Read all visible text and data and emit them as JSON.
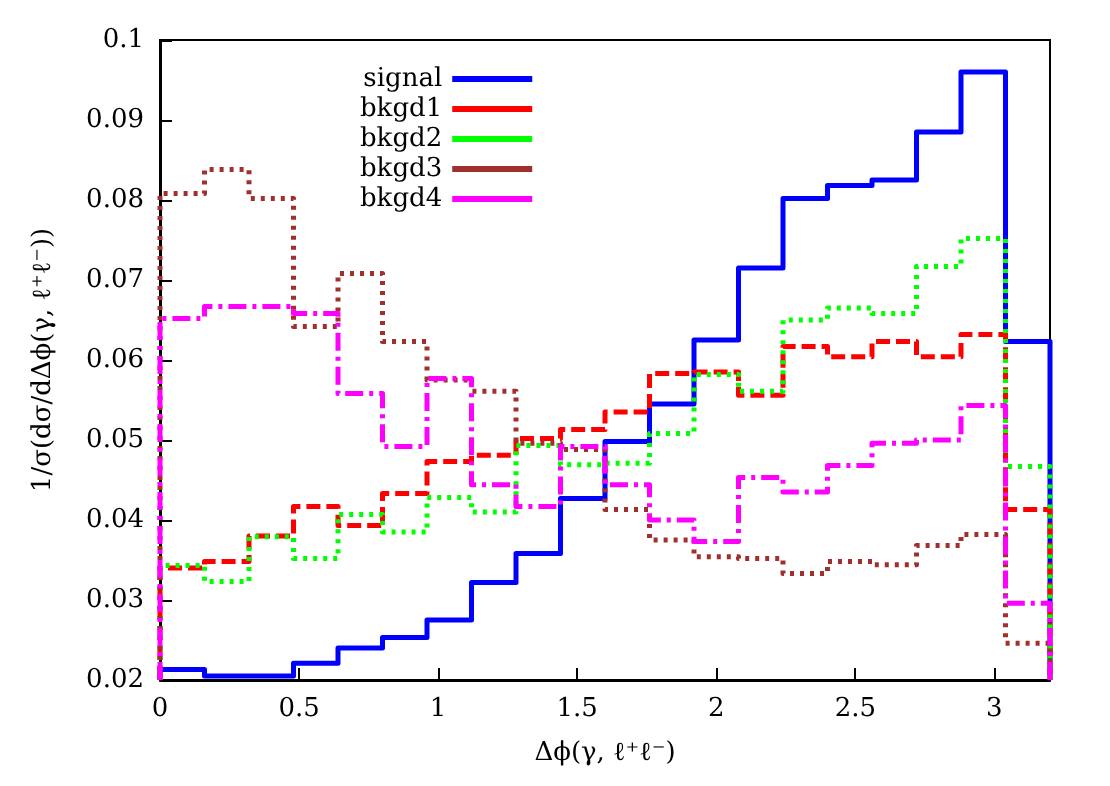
{
  "chart_data": {
    "type": "histogram",
    "xlabel": "Δϕ(γ, ℓ⁺ℓ⁻)",
    "ylabel": "1/σ(dσ/dΔϕ(γ, ℓ⁺ℓ⁻))",
    "bins": [
      0,
      0.16,
      0.32,
      0.48,
      0.64,
      0.8,
      0.96,
      1.12,
      1.28,
      1.44,
      1.6,
      1.76,
      1.92,
      2.08,
      2.24,
      2.4,
      2.56,
      2.72,
      2.88,
      3.04,
      3.2
    ],
    "series": [
      {
        "name": "signal",
        "color": "#0000ff",
        "line_style": "solid",
        "values": [
          0.0213,
          0.0205,
          0.0205,
          0.0221,
          0.024,
          0.0253,
          0.0275,
          0.0322,
          0.0358,
          0.0427,
          0.0498,
          0.0545,
          0.0625,
          0.0715,
          0.0802,
          0.0818,
          0.0825,
          0.0885,
          0.096,
          0.0623
        ]
      },
      {
        "name": "bkgd1",
        "color": "#ff0000",
        "line_style": "dashed",
        "values": [
          0.034,
          0.0348,
          0.038,
          0.0417,
          0.0393,
          0.0433,
          0.0473,
          0.0481,
          0.0502,
          0.0513,
          0.0535,
          0.0583,
          0.0585,
          0.0556,
          0.0617,
          0.0604,
          0.0623,
          0.0604,
          0.0632,
          0.0413
        ]
      },
      {
        "name": "bkgd2",
        "color": "#00ff00",
        "line_style": "dotted",
        "values": [
          0.0343,
          0.0323,
          0.0379,
          0.0352,
          0.0407,
          0.0385,
          0.0428,
          0.041,
          0.0493,
          0.0469,
          0.0471,
          0.0508,
          0.0582,
          0.0561,
          0.065,
          0.0665,
          0.0658,
          0.0717,
          0.0752,
          0.0467
        ]
      },
      {
        "name": "bkgd3",
        "color": "#a0302e",
        "line_style": "dotted",
        "values": [
          0.0808,
          0.0838,
          0.0802,
          0.0642,
          0.0708,
          0.0623,
          0.0575,
          0.0561,
          0.0496,
          0.0488,
          0.0413,
          0.0375,
          0.0354,
          0.0352,
          0.0333,
          0.0348,
          0.0344,
          0.0368,
          0.0382,
          0.0246
        ]
      },
      {
        "name": "bkgd4",
        "color": "#ff00ff",
        "line_style": "dashdot",
        "values": [
          0.0652,
          0.0667,
          0.0667,
          0.0658,
          0.0558,
          0.0492,
          0.0577,
          0.0444,
          0.0417,
          0.0492,
          0.0444,
          0.04,
          0.0373,
          0.0453,
          0.0435,
          0.0468,
          0.0496,
          0.05,
          0.0543,
          0.0296
        ]
      }
    ],
    "xlim": [
      0,
      3.2
    ],
    "xticks": [
      0,
      0.5,
      1,
      1.5,
      2,
      2.5,
      3
    ],
    "ylim": [
      0.02,
      0.1
    ],
    "yticks": [
      0.02,
      0.03,
      0.04,
      0.05,
      0.06,
      0.07,
      0.08,
      0.09,
      0.1
    ],
    "grid": false,
    "legend": "top"
  }
}
